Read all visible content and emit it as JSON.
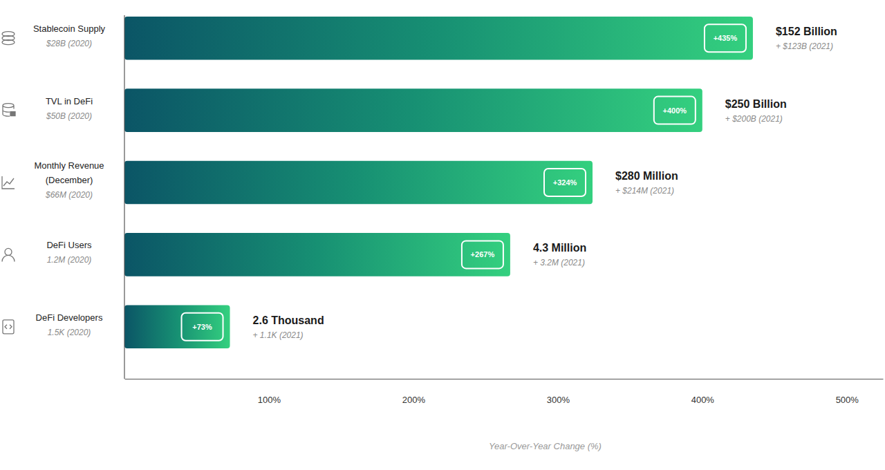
{
  "chart_data": {
    "type": "bar",
    "orientation": "horizontal",
    "categories": [
      "Stablecoin Supply",
      "TVL in DeFi",
      "Monthly Revenue (December)",
      "DeFi Users",
      "DeFi Developers"
    ],
    "base_labels": [
      "$28B (2020)",
      "$50B (2020)",
      "$66M (2020)",
      "1.2M (2020)",
      "1.5K (2020)"
    ],
    "values": [
      435,
      400,
      324,
      267,
      73
    ],
    "value_labels": [
      "+435%",
      "+400%",
      "+324%",
      "+267%",
      "+73%"
    ],
    "data_labels": true,
    "total_labels": [
      "$152 Billion",
      "$250 Billion",
      "$280 Million",
      "4.3 Million",
      "2.6 Thousand"
    ],
    "increase_labels": [
      "+ $123B (2021)",
      "+ $200B (2021)",
      "+ $214M (2021)",
      "+ 3.2M (2021)",
      "+ 1.1K (2021)"
    ],
    "color": "#34d07f",
    "xlabel": "Year-Over-Year Change (%)",
    "xlim": [
      0,
      525
    ],
    "xticks": [
      {
        "value": 100,
        "label": "100%"
      },
      {
        "value": 200,
        "label": "200%"
      },
      {
        "value": 300,
        "label": "300%"
      },
      {
        "value": 400,
        "label": "400%"
      },
      {
        "value": 500,
        "label": "500%"
      }
    ],
    "grid": false
  }
}
